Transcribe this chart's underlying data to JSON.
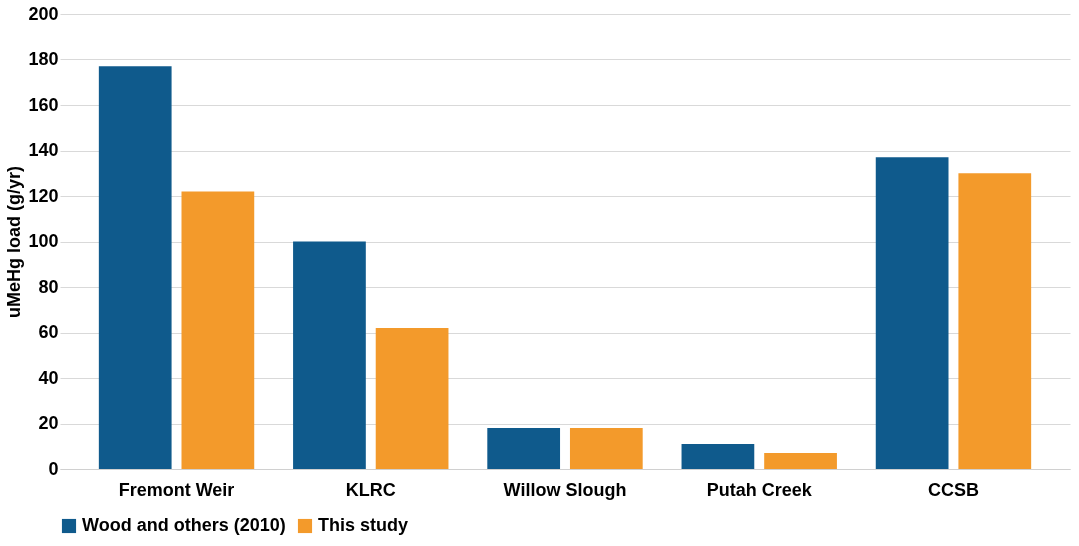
{
  "chart_data": {
    "type": "bar",
    "ylabel": "uMeHg load (g/yr)",
    "categories": [
      "Fremont Weir",
      "KLRC",
      "Willow Slough",
      "Putah Creek",
      "CCSB"
    ],
    "series": [
      {
        "name": "Wood and others (2010)",
        "color": "#0f5a8c",
        "values": [
          177,
          100,
          18,
          11,
          137
        ]
      },
      {
        "name": "This study",
        "color": "#f39a2b",
        "values": [
          122,
          62,
          18,
          7,
          130
        ]
      }
    ],
    "ylim": [
      0,
      200
    ],
    "yticks": [
      0,
      20,
      40,
      60,
      80,
      100,
      120,
      140,
      160,
      180,
      200
    ],
    "grid": "y",
    "legend": "bottom"
  }
}
